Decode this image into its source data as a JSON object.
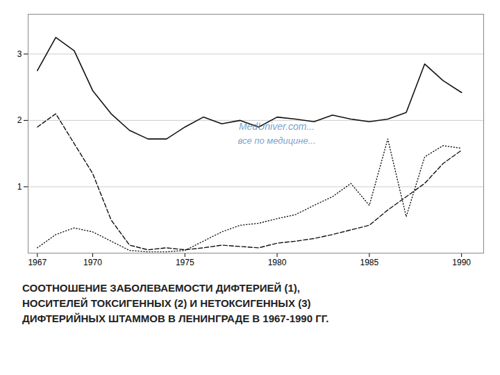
{
  "chart_data": {
    "type": "line",
    "title": "СООТНОШЕНИЕ ЗАБОЛЕВАЕМОСТИ ДИФТЕРИЕЙ (1),\nНОСИТЕЛЕЙ ТОКСИГЕННЫХ (2) И НЕТОКСИГЕННЫХ (3)\nДИФТЕРИЙНЫХ ШТАММОВ В ЛЕНИНГРАДЕ В 1967-1990 ГГ.",
    "x": [
      1967,
      1968,
      1969,
      1970,
      1971,
      1972,
      1973,
      1974,
      1975,
      1976,
      1977,
      1978,
      1979,
      1980,
      1981,
      1982,
      1983,
      1984,
      1985,
      1986,
      1987,
      1988,
      1989,
      1990
    ],
    "series": [
      {
        "color": "#111111",
        "line_style": "solid",
        "values": [
          2.75,
          3.25,
          3.05,
          2.45,
          2.1,
          1.85,
          1.72,
          1.72,
          1.9,
          2.05,
          1.95,
          2.0,
          1.9,
          2.05,
          2.02,
          1.98,
          2.08,
          2.02,
          1.98,
          2.02,
          2.12,
          2.85,
          2.6,
          2.42
        ]
      },
      {
        "color": "#111111",
        "line_style": "dashed",
        "values": [
          1.9,
          2.1,
          1.65,
          1.2,
          0.5,
          0.12,
          0.05,
          0.08,
          0.05,
          0.08,
          0.12,
          0.1,
          0.08,
          0.15,
          0.18,
          0.22,
          0.28,
          0.35,
          0.42,
          0.65,
          0.85,
          1.05,
          1.35,
          1.55
        ]
      },
      {
        "color": "#111111",
        "line_style": "dotted",
        "values": [
          0.08,
          0.28,
          0.38,
          0.32,
          0.18,
          0.04,
          0.02,
          0.02,
          0.04,
          0.18,
          0.32,
          0.42,
          0.45,
          0.52,
          0.58,
          0.72,
          0.85,
          1.05,
          0.72,
          1.72,
          0.55,
          1.45,
          1.62,
          1.58
        ]
      }
    ],
    "xlim": [
      1966.5,
      1991.2
    ],
    "xticks": [
      1967,
      1970,
      1975,
      1980,
      1985,
      1990
    ],
    "ylim": [
      0,
      3.6
    ],
    "yticks": [
      1,
      2,
      3
    ],
    "grid": true,
    "annotations": [
      {
        "text": "MedUniver.com...",
        "color": "#5588bb"
      },
      {
        "text": "все по медицине...",
        "color": "#5588bb"
      }
    ]
  }
}
